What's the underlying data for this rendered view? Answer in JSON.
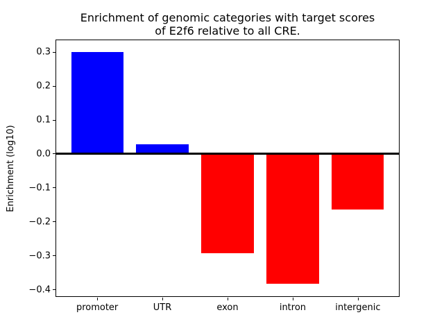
{
  "chart_data": {
    "type": "bar",
    "title": "Enrichment of genomic categories with target scores\nof E2f6 relative to all CRE.",
    "title_lines": [
      "Enrichment of genomic categories with target scores",
      "of E2f6 relative to all CRE."
    ],
    "xlabel": "",
    "ylabel": "Enrichment (log10)",
    "categories": [
      "promoter",
      "UTR",
      "exon",
      "intron",
      "intergenic"
    ],
    "values": [
      0.301,
      0.028,
      -0.292,
      -0.383,
      -0.164
    ],
    "bar_colors": [
      "#0000ff",
      "#0000ff",
      "#ff0000",
      "#ff0000",
      "#ff0000"
    ],
    "positive_color": "#0000ff",
    "negative_color": "#ff0000",
    "ylim": [
      -0.422,
      0.337
    ],
    "yticks": [
      0.3,
      0.2,
      0.1,
      0.0,
      -0.1,
      -0.2,
      -0.3,
      -0.4
    ],
    "ytick_labels": [
      "0.3",
      "0.2",
      "0.1",
      "0.0",
      "−0.1",
      "−0.2",
      "−0.3",
      "−0.4"
    ],
    "grid": false,
    "legend": false,
    "zero_line": true,
    "bar_width_fraction": 0.8,
    "axis_color": "#000000",
    "background_color": "#ffffff"
  }
}
